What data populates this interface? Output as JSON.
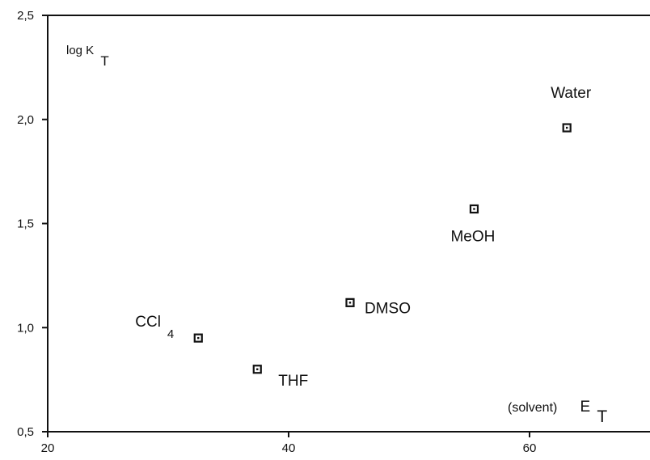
{
  "chart_data": {
    "type": "scatter",
    "xlim": [
      20,
      70
    ],
    "ylim": [
      0.5,
      2.5
    ],
    "x_ticks": [
      "20",
      "40",
      "60"
    ],
    "y_ticks": [
      "0,5",
      "1,0",
      "1,5",
      "2,0",
      "2,5"
    ],
    "x_tick_values": [
      20,
      40,
      60
    ],
    "y_tick_values": [
      0.5,
      1.0,
      1.5,
      2.0,
      2.5
    ],
    "ylabel": {
      "main": "log K",
      "sub": "T"
    },
    "xlabel": {
      "prefix": "(solvent)",
      "main": "E",
      "sub": "T"
    },
    "grid": false,
    "points": [
      {
        "label": "CCl",
        "label_sub": "4",
        "x": 32.5,
        "y": 0.95,
        "label_pos": "upper-left"
      },
      {
        "label": "THF",
        "x": 37.4,
        "y": 0.8,
        "label_pos": "lower-right"
      },
      {
        "label": "DMSO",
        "x": 45.1,
        "y": 1.12,
        "label_pos": "right"
      },
      {
        "label": "MeOH",
        "x": 55.4,
        "y": 1.57,
        "label_pos": "below"
      },
      {
        "label": "Water",
        "x": 63.1,
        "y": 1.96,
        "label_pos": "above"
      }
    ],
    "colors": {
      "ink": "#111111",
      "background": "#ffffff"
    }
  }
}
